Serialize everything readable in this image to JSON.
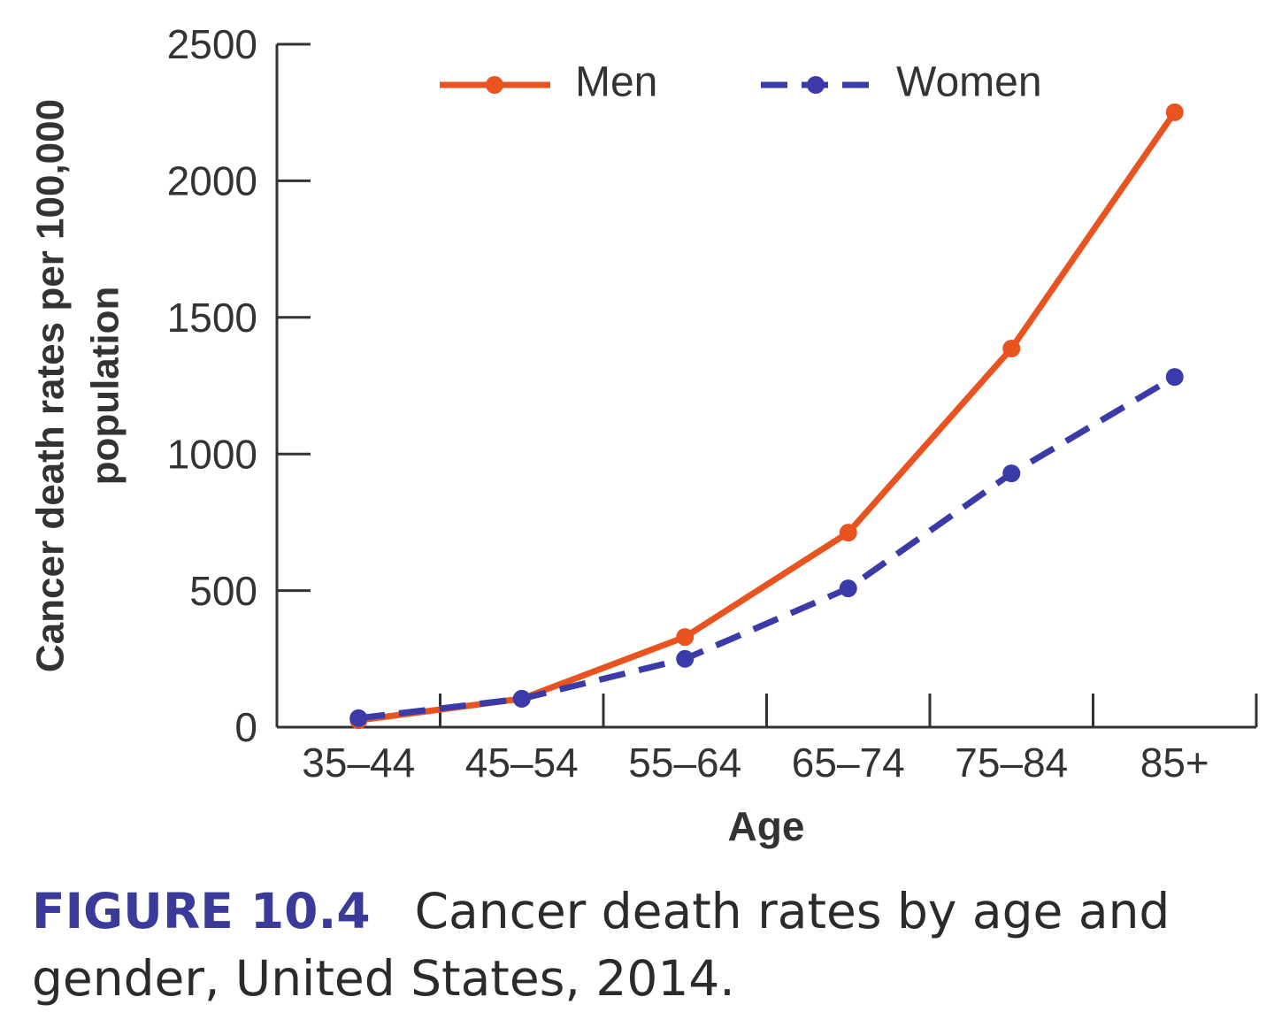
{
  "chart_data": {
    "type": "line",
    "ylabel": [
      "Cancer death rates per 100,000",
      "population"
    ],
    "xlabel": "Age",
    "categories": [
      "35–44",
      "45–54",
      "55–64",
      "65–74",
      "75–84",
      "85+"
    ],
    "series": [
      {
        "name": "Men",
        "color": "#e8531f",
        "dashed": false,
        "values": [
          25,
          104,
          330,
          712,
          1386,
          2251
        ]
      },
      {
        "name": "Women",
        "color": "#3a3aa8",
        "dashed": true,
        "values": [
          33,
          104,
          250,
          508,
          929,
          1282
        ]
      }
    ],
    "ylim": [
      0,
      2500
    ],
    "yticks": [
      0,
      500,
      1000,
      1500,
      2000,
      2500
    ],
    "figure_label": "FIGURE 10.4",
    "caption": "Cancer death rates by age and gender, United States, 2014."
  }
}
